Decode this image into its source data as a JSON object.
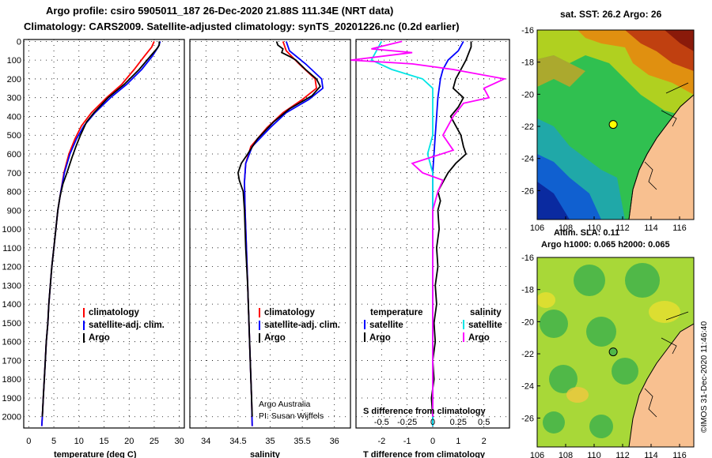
{
  "title_line1": "Argo profile: csiro 5905011_187 26-Dec-2020 21.88S 111.34E (NRT data)",
  "title_line2": "Climatology: CARS2009. Satellite-adjusted climatology: synTS_20201226.nc (0.2d earlier)",
  "colors": {
    "climatology": "#ff0000",
    "satellite": "#0000ff",
    "argo": "#000000",
    "sal_satellite": "#00e5e5",
    "sal_argo": "#ff00ff",
    "land": "#f8c090"
  },
  "depth_ticks": [
    0,
    100,
    200,
    300,
    400,
    500,
    600,
    700,
    800,
    900,
    1000,
    1100,
    1200,
    1300,
    1400,
    1500,
    1600,
    1700,
    1800,
    1900,
    2000
  ],
  "chart_data": [
    {
      "type": "line",
      "name": "temperature",
      "xlabel": "temperature (deg C)",
      "ylabel": "",
      "xlim": [
        -1,
        31
      ],
      "ylim": [
        2060,
        -10
      ],
      "xticks": [
        "0",
        "5",
        "10",
        "15",
        "20",
        "25",
        "30"
      ],
      "xtick_values": [
        0,
        5,
        10,
        15,
        20,
        25,
        30
      ],
      "legend": {
        "climatology": "climatology",
        "satellite": "satellite-adj. clim.",
        "argo": "Argo"
      },
      "series": [
        {
          "name": "climatology",
          "color": "#ff0000",
          "points": [
            [
              25,
              0
            ],
            [
              24.5,
              30
            ],
            [
              23,
              80
            ],
            [
              21,
              150
            ],
            [
              18.5,
              230
            ],
            [
              15.5,
              300
            ],
            [
              12.5,
              380
            ],
            [
              10.5,
              450
            ],
            [
              9.2,
              520
            ],
            [
              8,
              600
            ],
            [
              7,
              700
            ],
            [
              6.4,
              800
            ],
            [
              5.8,
              900
            ],
            [
              5.4,
              1000
            ],
            [
              5,
              1100
            ],
            [
              4.6,
              1200
            ],
            [
              4.3,
              1300
            ],
            [
              4,
              1400
            ],
            [
              3.8,
              1500
            ],
            [
              3.5,
              1600
            ],
            [
              3.3,
              1700
            ],
            [
              3.1,
              1800
            ],
            [
              2.9,
              1900
            ],
            [
              2.7,
              2000
            ],
            [
              2.6,
              2050
            ]
          ]
        },
        {
          "name": "satellite",
          "color": "#0000ff",
          "points": [
            [
              26.2,
              0
            ],
            [
              25.8,
              30
            ],
            [
              24.6,
              80
            ],
            [
              22.5,
              150
            ],
            [
              19.5,
              230
            ],
            [
              16.3,
              300
            ],
            [
              13.2,
              380
            ],
            [
              11,
              450
            ],
            [
              9.5,
              520
            ],
            [
              8.2,
              600
            ],
            [
              7.1,
              700
            ],
            [
              6.4,
              800
            ],
            [
              5.8,
              900
            ],
            [
              5.4,
              1000
            ],
            [
              5,
              1100
            ],
            [
              4.6,
              1200
            ],
            [
              4.3,
              1300
            ],
            [
              4,
              1400
            ],
            [
              3.8,
              1500
            ],
            [
              3.5,
              1600
            ],
            [
              3.3,
              1700
            ],
            [
              3.1,
              1800
            ],
            [
              2.9,
              1900
            ],
            [
              2.7,
              2000
            ],
            [
              2.6,
              2050
            ]
          ]
        },
        {
          "name": "argo",
          "color": "#000000",
          "points": [
            [
              26,
              0
            ],
            [
              26,
              20
            ],
            [
              25.5,
              40
            ],
            [
              24.2,
              80
            ],
            [
              22,
              150
            ],
            [
              19,
              230
            ],
            [
              15.8,
              300
            ],
            [
              13,
              380
            ],
            [
              11.5,
              430
            ],
            [
              10.3,
              500
            ],
            [
              9.4,
              560
            ],
            [
              8.6,
              620
            ],
            [
              7.6,
              700
            ],
            [
              6.8,
              760
            ],
            [
              6.2,
              830
            ],
            [
              5.8,
              900
            ],
            [
              5.4,
              1000
            ],
            [
              5,
              1100
            ],
            [
              4.6,
              1200
            ],
            [
              4.3,
              1300
            ],
            [
              4,
              1400
            ],
            [
              3.8,
              1500
            ],
            [
              3.5,
              1600
            ],
            [
              3.3,
              1700
            ],
            [
              3.1,
              1800
            ],
            [
              2.9,
              1900
            ],
            [
              2.7,
              2000
            ]
          ]
        }
      ]
    },
    {
      "type": "line",
      "name": "salinity",
      "xlabel": "salinity",
      "ylabel": "",
      "xlim": [
        33.75,
        36.25
      ],
      "ylim": [
        2060,
        -10
      ],
      "xticks": [
        "34",
        "34.5",
        "35",
        "35.5",
        "36"
      ],
      "xtick_values": [
        34,
        34.5,
        35,
        35.5,
        36
      ],
      "legend": {
        "climatology": "climatology",
        "satellite": "satellite-adj. clim.",
        "argo": "Argo"
      },
      "annotation": [
        "Argo Australia",
        "PI: Susan Wijffels"
      ],
      "series": [
        {
          "name": "climatology",
          "color": "#ff0000",
          "points": [
            [
              35.2,
              0
            ],
            [
              35.25,
              50
            ],
            [
              35.45,
              120
            ],
            [
              35.7,
              200
            ],
            [
              35.72,
              250
            ],
            [
              35.5,
              310
            ],
            [
              35.2,
              380
            ],
            [
              34.95,
              460
            ],
            [
              34.7,
              560
            ],
            [
              34.62,
              650
            ],
            [
              34.6,
              750
            ],
            [
              34.61,
              900
            ],
            [
              34.63,
              1100
            ],
            [
              34.65,
              1300
            ],
            [
              34.67,
              1500
            ],
            [
              34.69,
              1700
            ],
            [
              34.71,
              1900
            ],
            [
              34.72,
              2050
            ]
          ]
        },
        {
          "name": "satellite",
          "color": "#0000ff",
          "points": [
            [
              35.25,
              0
            ],
            [
              35.3,
              50
            ],
            [
              35.55,
              120
            ],
            [
              35.8,
              200
            ],
            [
              35.82,
              250
            ],
            [
              35.6,
              310
            ],
            [
              35.25,
              380
            ],
            [
              35,
              460
            ],
            [
              34.72,
              560
            ],
            [
              34.62,
              650
            ],
            [
              34.6,
              750
            ],
            [
              34.61,
              900
            ],
            [
              34.63,
              1100
            ],
            [
              34.65,
              1300
            ],
            [
              34.67,
              1500
            ],
            [
              34.69,
              1700
            ],
            [
              34.71,
              1900
            ],
            [
              34.72,
              2050
            ]
          ]
        },
        {
          "name": "argo",
          "color": "#000000",
          "points": [
            [
              35.1,
              0
            ],
            [
              35.12,
              20
            ],
            [
              35.2,
              40
            ],
            [
              35.18,
              60
            ],
            [
              35.3,
              80
            ],
            [
              35.4,
              100
            ],
            [
              35.55,
              150
            ],
            [
              35.72,
              200
            ],
            [
              35.78,
              240
            ],
            [
              35.65,
              290
            ],
            [
              35.3,
              360
            ],
            [
              35.05,
              430
            ],
            [
              34.8,
              520
            ],
            [
              34.65,
              600
            ],
            [
              34.55,
              650
            ],
            [
              34.5,
              700
            ],
            [
              34.52,
              740
            ],
            [
              34.58,
              800
            ],
            [
              34.6,
              900
            ],
            [
              34.62,
              1100
            ],
            [
              34.65,
              1300
            ],
            [
              34.67,
              1500
            ],
            [
              34.69,
              1700
            ],
            [
              34.71,
              1900
            ],
            [
              34.72,
              2000
            ]
          ]
        }
      ]
    },
    {
      "type": "line",
      "name": "difference",
      "xlabel": "T difference from climatology",
      "xlabel_top": "S difference from climatology",
      "ylabel": "",
      "xlim": [
        -3,
        3
      ],
      "ylim": [
        2060,
        -10
      ],
      "xticks": [
        "-2",
        "-1",
        "0",
        "1",
        "2"
      ],
      "xtick_values": [
        -2,
        -1,
        0,
        1,
        2
      ],
      "xticks_top": [
        "-0.5",
        "-0.25",
        "0",
        "0.25",
        "0.5"
      ],
      "xtick_top_values": [
        -0.5,
        -0.25,
        0,
        0.25,
        0.5
      ],
      "legend": {
        "temperature": "temperature",
        "salinity": "salinity",
        "satellite": "satellite",
        "argo": "Argo"
      },
      "series": [
        {
          "name": "T satellite",
          "color": "#0000ff",
          "points": [
            [
              1.2,
              0
            ],
            [
              1,
              50
            ],
            [
              0.6,
              100
            ],
            [
              0.4,
              150
            ],
            [
              0.3,
              200
            ],
            [
              0.2,
              300
            ],
            [
              0.15,
              400
            ],
            [
              0.1,
              500
            ],
            [
              0.05,
              600
            ],
            [
              0,
              700
            ],
            [
              0,
              800
            ],
            [
              0,
              900
            ],
            [
              0,
              1000
            ],
            [
              0,
              1200
            ],
            [
              0,
              1500
            ],
            [
              0,
              1800
            ],
            [
              0,
              2050
            ]
          ]
        },
        {
          "name": "T argo",
          "color": "#000000",
          "points": [
            [
              1.5,
              0
            ],
            [
              1.5,
              30
            ],
            [
              1.3,
              100
            ],
            [
              1.1,
              150
            ],
            [
              0.9,
              200
            ],
            [
              0.8,
              250
            ],
            [
              1.2,
              300
            ],
            [
              1,
              350
            ],
            [
              0.7,
              400
            ],
            [
              0.9,
              450
            ],
            [
              1.1,
              500
            ],
            [
              1.2,
              560
            ],
            [
              1.3,
              600
            ],
            [
              0.9,
              650
            ],
            [
              0.6,
              700
            ],
            [
              0.4,
              750
            ],
            [
              0.2,
              800
            ],
            [
              0.3,
              850
            ],
            [
              0.2,
              900
            ],
            [
              0.25,
              1000
            ],
            [
              0.15,
              1100
            ],
            [
              0.2,
              1200
            ],
            [
              0.1,
              1300
            ],
            [
              0.15,
              1400
            ],
            [
              0.05,
              1500
            ],
            [
              0.1,
              1600
            ],
            [
              0,
              1700
            ],
            [
              0.05,
              1800
            ],
            [
              -0.05,
              1900
            ],
            [
              0,
              2000
            ]
          ]
        },
        {
          "name": "S satellite",
          "color": "#00e5e5",
          "points": [
            [
              -0.5,
              0
            ],
            [
              -0.55,
              50
            ],
            [
              -0.6,
              100
            ],
            [
              -0.4,
              150
            ],
            [
              -0.1,
              200
            ],
            [
              0,
              250
            ],
            [
              0,
              300
            ],
            [
              0,
              400
            ],
            [
              0,
              500
            ],
            [
              -0.05,
              600
            ],
            [
              0,
              700
            ],
            [
              0,
              800
            ],
            [
              0,
              1000
            ],
            [
              0,
              1200
            ],
            [
              0,
              1500
            ],
            [
              0,
              1800
            ],
            [
              0,
              2050
            ]
          ]
        },
        {
          "name": "S argo",
          "color": "#ff00ff",
          "points": [
            [
              -0.3,
              0
            ],
            [
              -0.6,
              40
            ],
            [
              -0.2,
              60
            ],
            [
              -0.8,
              100
            ],
            [
              -0.2,
              120
            ],
            [
              0.2,
              150
            ],
            [
              0.7,
              200
            ],
            [
              0.5,
              250
            ],
            [
              0.55,
              300
            ],
            [
              0.3,
              330
            ],
            [
              0.2,
              400
            ],
            [
              0.1,
              500
            ],
            [
              0.2,
              580
            ],
            [
              -0.2,
              650
            ],
            [
              -0.1,
              700
            ],
            [
              0.1,
              740
            ],
            [
              0.05,
              800
            ],
            [
              0,
              900
            ],
            [
              0,
              1000
            ],
            [
              0,
              1200
            ],
            [
              0,
              1500
            ],
            [
              0,
              1800
            ],
            [
              0,
              2000
            ]
          ]
        }
      ]
    },
    {
      "type": "heatmap",
      "name": "sst_map",
      "title": "sat. SST: 26.2 Argo: 26",
      "xticks": [
        "106",
        "108",
        "110",
        "112",
        "114",
        "116"
      ],
      "yticks": [
        "-16",
        "-18",
        "-20",
        "-22",
        "-24",
        "-26"
      ],
      "xlim": [
        106,
        117
      ],
      "ylim": [
        -27.8,
        -16
      ],
      "argo_position": [
        111.34,
        -21.88
      ]
    },
    {
      "type": "heatmap",
      "name": "sla_map",
      "title_line1": "Altim. SLA: 0.11",
      "title_line2": "Argo h1000: 0.065 h2000: 0.065",
      "xticks": [
        "106",
        "108",
        "110",
        "112",
        "114",
        "116"
      ],
      "yticks": [
        "-16",
        "-18",
        "-20",
        "-22",
        "-24",
        "-26"
      ],
      "xlim": [
        106,
        117
      ],
      "ylim": [
        -27.8,
        -16
      ],
      "argo_position": [
        111.34,
        -21.88
      ],
      "credit": "©IMOS 31-Dec-2020 11:46:40"
    }
  ]
}
